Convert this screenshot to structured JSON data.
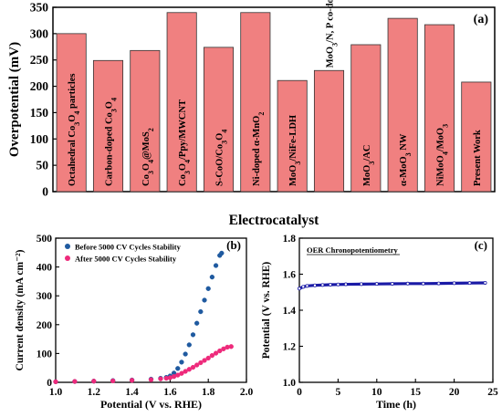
{
  "chart_data": [
    {
      "panel": "(a)",
      "type": "bar",
      "ylabel": "Overpotential (mV)",
      "xlabel": "Electrocatalyst",
      "ylim": [
        0,
        350
      ],
      "yticks": [
        0,
        50,
        100,
        150,
        200,
        250,
        300,
        350
      ],
      "bar_color": "#f08080",
      "categories": [
        "Octahedral Co3O4 particles",
        "Carbon-doped Co3O4",
        "Co3O4@MoS2",
        "Co3O4/Ppy/MWCNT",
        "S-CoO/Co3O4",
        "Ni-doped α-MnO2",
        "MoO3/NiFe-LDH",
        "MoO3/N, P co-doped carbon sheets",
        "MoO3/AC",
        "α-MoO3 NW",
        "NiMoO4/MoO3",
        "Present Work"
      ],
      "values": [
        300,
        249,
        268,
        340,
        274,
        340,
        211,
        230,
        279,
        329,
        317,
        208
      ]
    },
    {
      "panel": "(b)",
      "type": "scatter",
      "xlabel": "Potential (V vs. RHE)",
      "ylabel": "Current density (mA cm⁻²)",
      "xlim": [
        1.0,
        2.0
      ],
      "ylim": [
        0,
        500
      ],
      "xticks": [
        "1.0",
        "1.2",
        "1.4",
        "1.6",
        "1.8",
        "2.0"
      ],
      "yticks": [
        "0",
        "100",
        "200",
        "300",
        "400",
        "500"
      ],
      "legend_position": "top-left",
      "series": [
        {
          "name": "Before 5000 CV Cycles Stability",
          "color": "#1f5aa0",
          "x": [
            1.0,
            1.1,
            1.2,
            1.3,
            1.4,
            1.5,
            1.55,
            1.58,
            1.6,
            1.62,
            1.64,
            1.66,
            1.68,
            1.7,
            1.72,
            1.74,
            1.76,
            1.78,
            1.8,
            1.82,
            1.84,
            1.86,
            1.87
          ],
          "y": [
            2,
            3,
            4,
            6,
            8,
            11,
            14,
            17,
            22,
            32,
            48,
            70,
            98,
            130,
            165,
            205,
            245,
            285,
            325,
            365,
            405,
            440,
            448
          ]
        },
        {
          "name": "After 5000 CV Cycles Stability",
          "color": "#ee2a7b",
          "x": [
            1.0,
            1.1,
            1.2,
            1.3,
            1.4,
            1.5,
            1.55,
            1.58,
            1.6,
            1.62,
            1.64,
            1.66,
            1.68,
            1.7,
            1.72,
            1.74,
            1.76,
            1.78,
            1.8,
            1.82,
            1.84,
            1.86,
            1.88,
            1.9,
            1.92
          ],
          "y": [
            2,
            3,
            4,
            5,
            7,
            9,
            12,
            14,
            16,
            20,
            25,
            31,
            38,
            45,
            52,
            60,
            68,
            76,
            84,
            93,
            101,
            109,
            116,
            122,
            124
          ]
        }
      ]
    },
    {
      "panel": "(c)",
      "type": "line",
      "xlabel": "Time (h)",
      "ylabel": "Potential (V vs. RHE)",
      "xlim": [
        0,
        25
      ],
      "ylim": [
        1.0,
        1.8
      ],
      "xticks": [
        "0",
        "5",
        "10",
        "15",
        "20",
        "25"
      ],
      "yticks": [
        "1.0",
        "1.2",
        "1.4",
        "1.6",
        "1.8"
      ],
      "legend_position": "top-left",
      "series": [
        {
          "name": "OER Chronopotentiometry",
          "color": "#1a1aa6",
          "x": [
            0,
            0.5,
            1,
            2,
            3,
            4,
            5,
            6,
            8,
            10,
            12,
            14,
            16,
            18,
            20,
            22,
            24
          ],
          "y": [
            1.52,
            1.53,
            1.535,
            1.538,
            1.54,
            1.542,
            1.543,
            1.544,
            1.545,
            1.546,
            1.547,
            1.548,
            1.548,
            1.549,
            1.55,
            1.551,
            1.552
          ]
        }
      ]
    }
  ]
}
